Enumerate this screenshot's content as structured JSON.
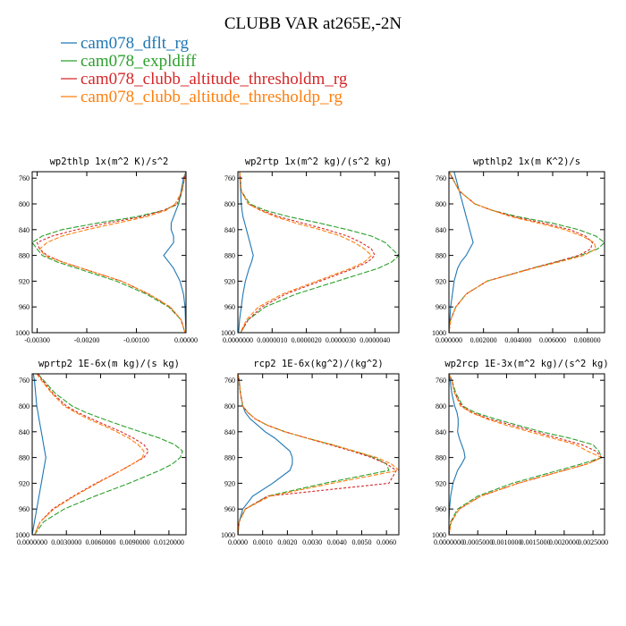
{
  "figure_title": "CLUBB VAR at265E,-2N",
  "legend": [
    {
      "label": "cam078_dflt_rg",
      "color": "#1f77b4"
    },
    {
      "label": "cam078_expldiff",
      "color": "#2ca02c"
    },
    {
      "label": "cam078_clubb_altitude_thresholdm_rg",
      "color": "#d62728"
    },
    {
      "label": "cam078_clubb_altitude_thresholdp_rg",
      "color": "#ff7f0e"
    }
  ],
  "chart_data": [
    {
      "type": "line",
      "title": "wp2thlp  1x(m^2 K)/s^2",
      "xlim": [
        -0.0031,
        0.0
      ],
      "ylim": [
        1000,
        750
      ],
      "x_ticks": [
        -0.003,
        -0.002,
        -0.001,
        0.0
      ],
      "x_tick_labels": [
        "-0.00300",
        "-0.00200",
        "-0.00100",
        "0.00000"
      ],
      "y_ticks": [
        760,
        800,
        840,
        880,
        920,
        960,
        1000
      ],
      "y": [
        750,
        760,
        780,
        800,
        810,
        820,
        830,
        840,
        850,
        860,
        870,
        880,
        890,
        900,
        920,
        940,
        960,
        980,
        1000
      ],
      "series": [
        {
          "name": "cam078_dflt_rg",
          "x": [
            0,
            -5e-05,
            -0.0001,
            -0.00015,
            -0.0002,
            -0.00025,
            -0.0003,
            -0.0003,
            -0.00025,
            -0.00025,
            -0.00035,
            -0.00045,
            -0.00035,
            -0.00025,
            -0.00012,
            -5e-05,
            -2e-05,
            -1e-05,
            0
          ]
        },
        {
          "name": "cam078_expldiff",
          "x": [
            0,
            -3e-05,
            -8e-05,
            -0.00015,
            -0.00045,
            -0.001,
            -0.0018,
            -0.0025,
            -0.0029,
            -0.0031,
            -0.003,
            -0.0029,
            -0.0026,
            -0.0022,
            -0.0014,
            -0.0008,
            -0.00035,
            -0.0001,
            -2e-05
          ]
        },
        {
          "name": "cam078_clubb_altitude_thresholdm_rg",
          "x": [
            0,
            -3e-05,
            -8e-05,
            -0.00018,
            -0.00045,
            -0.0009,
            -0.0016,
            -0.0022,
            -0.0027,
            -0.003,
            -0.00295,
            -0.0028,
            -0.0025,
            -0.0021,
            -0.0013,
            -0.00075,
            -0.00032,
            -0.0001,
            -2e-05
          ]
        },
        {
          "name": "cam078_clubb_altitude_thresholdp_rg",
          "x": [
            0,
            -3e-05,
            -8e-05,
            -0.00022,
            -0.0004,
            -0.0008,
            -0.0014,
            -0.002,
            -0.0025,
            -0.0028,
            -0.00295,
            -0.00285,
            -0.0025,
            -0.0021,
            -0.0013,
            -0.00075,
            -0.00032,
            -0.0001,
            -2e-05
          ]
        }
      ]
    },
    {
      "type": "line",
      "title": "wp2rtp  1x(m^2 kg)/(s^2 kg)",
      "xlim": [
        0.0,
        4.7e-06
      ],
      "ylim": [
        1000,
        750
      ],
      "x_ticks": [
        0.0,
        1e-06,
        2e-06,
        3e-06,
        4e-06
      ],
      "x_tick_labels": [
        "0.0000000",
        "0.0000010",
        "0.0000020",
        "0.0000030",
        "0.0000040"
      ],
      "y_ticks": [
        760,
        800,
        840,
        880,
        920,
        960,
        1000
      ],
      "y": [
        750,
        760,
        780,
        800,
        810,
        820,
        830,
        840,
        850,
        860,
        870,
        880,
        890,
        900,
        920,
        940,
        960,
        980,
        1000
      ],
      "series": [
        {
          "name": "cam078_dflt_rg",
          "x": [
            5e-08,
            6e-08,
            8e-08,
            1e-07,
            1.2e-07,
            1.5e-07,
            2e-07,
            2.5e-07,
            3e-07,
            3.5e-07,
            4e-07,
            4.5e-07,
            4e-07,
            3.3e-07,
            2.2e-07,
            1.5e-07,
            1e-07,
            5e-08,
            2e-08
          ]
        },
        {
          "name": "cam078_expldiff",
          "x": [
            5e-08,
            7e-08,
            1e-07,
            3.5e-07,
            8e-07,
            1.5e-06,
            2.4e-06,
            3.2e-06,
            3.9e-06,
            4.3e-06,
            4.5e-06,
            4.7e-06,
            4.5e-06,
            4.1e-06,
            2.9e-06,
            1.7e-06,
            8e-07,
            3e-07,
            8e-08
          ]
        },
        {
          "name": "cam078_clubb_altitude_thresholdm_rg",
          "x": [
            5e-08,
            7e-08,
            1e-07,
            3e-07,
            7e-07,
            1.2e-06,
            1.9e-06,
            2.6e-06,
            3.2e-06,
            3.6e-06,
            3.9e-06,
            4e-06,
            3.8e-06,
            3.4e-06,
            2.4e-06,
            1.4e-06,
            7e-07,
            3e-07,
            8e-08
          ]
        },
        {
          "name": "cam078_clubb_altitude_thresholdp_rg",
          "x": [
            5e-08,
            7e-08,
            1e-07,
            3e-07,
            6.5e-07,
            1.1e-06,
            1.7e-06,
            2.4e-06,
            3e-06,
            3.4e-06,
            3.7e-06,
            3.9e-06,
            3.7e-06,
            3.3e-06,
            2.3e-06,
            1.3e-06,
            6e-07,
            2.5e-07,
            7e-08
          ]
        }
      ]
    },
    {
      "type": "line",
      "title": "wpthlp2  1x(m K^2)/s",
      "xlim": [
        0.0,
        0.009
      ],
      "ylim": [
        1000,
        750
      ],
      "x_ticks": [
        0.0,
        0.002,
        0.004,
        0.006,
        0.008
      ],
      "x_tick_labels": [
        "0.000000",
        "0.002000",
        "0.004000",
        "0.006000",
        "0.008000"
      ],
      "y_ticks": [
        760,
        800,
        840,
        880,
        920,
        960,
        1000
      ],
      "y": [
        750,
        760,
        780,
        800,
        810,
        820,
        830,
        840,
        850,
        860,
        870,
        880,
        890,
        900,
        920,
        940,
        960,
        980,
        1000
      ],
      "series": [
        {
          "name": "cam078_dflt_rg",
          "x": [
            0.0003,
            0.0004,
            0.0006,
            0.0008,
            0.0009,
            0.001,
            0.0011,
            0.0012,
            0.0013,
            0.0014,
            0.0012,
            0.001,
            0.0007,
            0.0005,
            0.0003,
            0.0002,
            0.0001,
            5e-05,
            0.0
          ]
        },
        {
          "name": "cam078_expldiff",
          "x": [
            0.0,
            0.0002,
            0.0006,
            0.0015,
            0.0025,
            0.004,
            0.006,
            0.0075,
            0.0085,
            0.009,
            0.0086,
            0.0076,
            0.0062,
            0.0048,
            0.0022,
            0.001,
            0.0004,
            0.0001,
            0.0
          ]
        },
        {
          "name": "cam078_clubb_altitude_thresholdm_rg",
          "x": [
            0.0,
            0.0002,
            0.0006,
            0.0015,
            0.0025,
            0.0038,
            0.0055,
            0.007,
            0.0079,
            0.0083,
            0.0082,
            0.0075,
            0.0062,
            0.0048,
            0.0022,
            0.001,
            0.0004,
            0.0001,
            0.0
          ]
        },
        {
          "name": "cam078_clubb_altitude_thresholdp_rg",
          "x": [
            0.0,
            0.0002,
            0.0006,
            0.0015,
            0.0025,
            0.0036,
            0.0052,
            0.0067,
            0.0077,
            0.0084,
            0.0085,
            0.0078,
            0.0064,
            0.0049,
            0.0022,
            0.001,
            0.0004,
            0.0001,
            0.0
          ]
        }
      ]
    },
    {
      "type": "line",
      "title": "wprtp2  1E-6x(m kg)/(s kg)",
      "xlim": [
        0.0,
        0.0135
      ],
      "ylim": [
        1000,
        750
      ],
      "x_ticks": [
        0.0,
        0.003,
        0.006,
        0.009,
        0.012
      ],
      "x_tick_labels": [
        "0.0000000",
        "0.0030000",
        "0.0060000",
        "0.0090000",
        "0.0120000"
      ],
      "y_ticks": [
        760,
        800,
        840,
        880,
        920,
        960,
        1000
      ],
      "y": [
        750,
        760,
        780,
        800,
        810,
        820,
        830,
        840,
        850,
        860,
        870,
        880,
        890,
        900,
        920,
        940,
        960,
        980,
        1000
      ],
      "series": [
        {
          "name": "cam078_dflt_rg",
          "x": [
            0.0001,
            0.0002,
            0.0003,
            0.0004,
            0.0005,
            0.0006,
            0.0007,
            0.0008,
            0.0009,
            0.001,
            0.0011,
            0.0012,
            0.0011,
            0.001,
            0.0008,
            0.0006,
            0.0004,
            0.0002,
            0.0
          ]
        },
        {
          "name": "cam078_expldiff",
          "x": [
            0.0005,
            0.001,
            0.002,
            0.0035,
            0.0047,
            0.0062,
            0.0078,
            0.0095,
            0.0112,
            0.0125,
            0.0132,
            0.013,
            0.0123,
            0.0112,
            0.0085,
            0.0055,
            0.0028,
            0.001,
            0.0002
          ]
        },
        {
          "name": "cam078_clubb_altitude_thresholdm_rg",
          "x": [
            0.0005,
            0.0009,
            0.0018,
            0.003,
            0.004,
            0.0052,
            0.0065,
            0.0078,
            0.0089,
            0.0098,
            0.0102,
            0.0098,
            0.0088,
            0.0078,
            0.0056,
            0.0036,
            0.0018,
            0.0007,
            0.0002
          ]
        },
        {
          "name": "cam078_clubb_altitude_thresholdp_rg",
          "x": [
            0.0004,
            0.0008,
            0.0017,
            0.0028,
            0.0038,
            0.0049,
            0.0062,
            0.0074,
            0.0085,
            0.0093,
            0.0098,
            0.0097,
            0.0088,
            0.0078,
            0.0057,
            0.0037,
            0.0019,
            0.0007,
            0.0002
          ]
        }
      ]
    },
    {
      "type": "line",
      "title": "rcp2  1E-6x(kg^2)/(kg^2)",
      "xlim": [
        0.0,
        0.0065
      ],
      "ylim": [
        1000,
        750
      ],
      "x_ticks": [
        0.0,
        0.001,
        0.002,
        0.003,
        0.004,
        0.005,
        0.006
      ],
      "x_tick_labels": [
        "0.0000",
        "0.0010",
        "0.0020",
        "0.0030",
        "0.0040",
        "0.0050",
        "0.0060"
      ],
      "y_ticks": [
        760,
        800,
        840,
        880,
        920,
        960,
        1000
      ],
      "y": [
        750,
        760,
        780,
        800,
        810,
        820,
        830,
        840,
        850,
        860,
        870,
        880,
        890,
        900,
        920,
        940,
        960,
        980,
        1000
      ],
      "series": [
        {
          "name": "cam078_dflt_rg",
          "x": [
            0.0,
            5e-05,
            0.0001,
            0.0002,
            0.0003,
            0.0005,
            0.0008,
            0.0011,
            0.0015,
            0.0018,
            0.0021,
            0.0022,
            0.0022,
            0.0021,
            0.0014,
            0.0006,
            0.0002,
            5e-05,
            0.0
          ]
        },
        {
          "name": "cam078_expldiff",
          "x": [
            0.0,
            5e-05,
            0.0001,
            0.0002,
            0.0004,
            0.0007,
            0.0012,
            0.0019,
            0.0028,
            0.0038,
            0.0047,
            0.0055,
            0.006,
            0.0061,
            0.0035,
            0.0012,
            0.0003,
            5e-05,
            0.0
          ]
        },
        {
          "name": "cam078_clubb_altitude_thresholdm_rg",
          "x": [
            0.0,
            5e-05,
            0.0001,
            0.0002,
            0.0004,
            0.0007,
            0.0012,
            0.0019,
            0.0028,
            0.0037,
            0.0046,
            0.0054,
            0.006,
            0.0064,
            0.0061,
            0.0012,
            0.0003,
            5e-05,
            0.0
          ]
        },
        {
          "name": "cam078_clubb_altitude_thresholdp_rg",
          "x": [
            0.0,
            5e-05,
            0.0001,
            0.0002,
            0.0004,
            0.0007,
            0.0012,
            0.0019,
            0.0028,
            0.0038,
            0.0047,
            0.0056,
            0.0062,
            0.0065,
            0.0038,
            0.0013,
            0.0003,
            5e-05,
            0.0
          ]
        }
      ]
    },
    {
      "type": "line",
      "title": "wp2rcp  1E-3x(m^2 kg)/(s^2 kg)",
      "xlim": [
        0.0,
        0.0027
      ],
      "ylim": [
        1000,
        750
      ],
      "x_ticks": [
        0.0,
        0.0005,
        0.001,
        0.0015,
        0.002,
        0.0025
      ],
      "x_tick_labels": [
        "0.0000000",
        "0.0005000",
        "0.0010000",
        "0.0015000",
        "0.0020000",
        "0.0025000"
      ],
      "y_ticks": [
        760,
        800,
        840,
        880,
        920,
        960,
        1000
      ],
      "y": [
        750,
        760,
        780,
        800,
        810,
        820,
        830,
        840,
        850,
        860,
        870,
        880,
        890,
        900,
        920,
        940,
        960,
        980,
        1000
      ],
      "series": [
        {
          "name": "cam078_dflt_rg",
          "x": [
            0.0,
            2e-05,
            5e-05,
            0.0001,
            0.00014,
            0.00016,
            0.00016,
            0.00015,
            0.00018,
            0.00022,
            0.00026,
            0.00028,
            0.00022,
            0.00015,
            7e-05,
            3e-05,
            1e-05,
            0.0,
            0.0
          ]
        },
        {
          "name": "cam078_expldiff",
          "x": [
            0.0,
            5e-05,
            0.00012,
            0.00024,
            0.00045,
            0.0008,
            0.0012,
            0.0016,
            0.0021,
            0.0025,
            0.0026,
            0.00265,
            0.0023,
            0.0019,
            0.0011,
            0.0005,
            0.00015,
            3e-05,
            0.0
          ]
        },
        {
          "name": "cam078_clubb_altitude_thresholdm_rg",
          "x": [
            0.0,
            5e-05,
            0.0001,
            0.00022,
            0.0004,
            0.0007,
            0.0011,
            0.0015,
            0.0019,
            0.0023,
            0.00255,
            0.00265,
            0.0024,
            0.002,
            0.0012,
            0.00055,
            0.00018,
            4e-05,
            0.0
          ]
        },
        {
          "name": "cam078_clubb_altitude_thresholdp_rg",
          "x": [
            0.0,
            5e-05,
            0.0001,
            0.0002,
            0.00038,
            0.00065,
            0.001,
            0.0014,
            0.0018,
            0.0022,
            0.0024,
            0.00265,
            0.0024,
            0.002,
            0.0012,
            0.00055,
            0.00018,
            4e-05,
            0.0
          ]
        }
      ]
    }
  ]
}
